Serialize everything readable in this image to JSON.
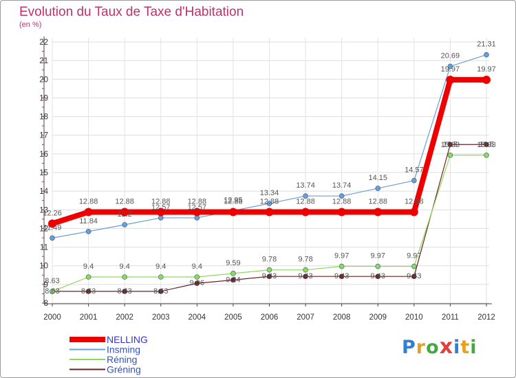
{
  "header": {
    "title": "Evolution du Taux de Taxe d'Habitation",
    "subtitle": "(en %)"
  },
  "logo": {
    "letters": [
      "P",
      "r",
      "o",
      "x",
      "i",
      "t",
      "i"
    ],
    "colors": [
      "#2f7fd4",
      "#e8a020",
      "#45a845",
      "#e04040",
      "#2f7fd4",
      "#e8a020",
      "#45a845"
    ]
  },
  "chart_data": {
    "type": "line",
    "x": [
      "2000",
      "2001",
      "2002",
      "2003",
      "2004",
      "2005",
      "2006",
      "2007",
      "2008",
      "2009",
      "2010",
      "2011",
      "2012"
    ],
    "yticks": [
      "8",
      "9",
      "10",
      "11",
      "12",
      "13",
      "14",
      "15",
      "16",
      "17",
      "18",
      "19",
      "20",
      "21",
      "22"
    ],
    "ylim": [
      8,
      22
    ],
    "grid": true,
    "legend_position": "bottom-left",
    "series": [
      {
        "name": "NELLING",
        "color": "#ee0000",
        "values": [
          12.26,
          12.88,
          12.88,
          12.88,
          12.88,
          12.88,
          12.88,
          12.88,
          12.88,
          12.88,
          12.88,
          19.97,
          19.97
        ],
        "labels": [
          "12.26",
          "12.88",
          "12.88",
          "12.88",
          "12.88",
          "12.88",
          "12.88",
          "12.88",
          "12.88",
          "12.88",
          "12.88",
          "19.97",
          "19.97"
        ]
      },
      {
        "name": "Insming",
        "color": "#6a9ed8",
        "values": [
          11.49,
          11.84,
          12.2,
          12.57,
          12.57,
          12.95,
          13.34,
          13.74,
          13.74,
          14.15,
          14.57,
          20.69,
          21.31
        ],
        "labels": [
          "11.49",
          "11.84",
          "12.2",
          "12.57",
          "12.57",
          "12.95",
          "13.34",
          "13.74",
          "13.74",
          "14.15",
          "14.57",
          "20.69",
          "21.31"
        ]
      },
      {
        "name": "Réning",
        "color": "#8ed85e",
        "values": [
          8.63,
          9.4,
          9.4,
          9.4,
          9.4,
          9.59,
          9.78,
          9.78,
          9.97,
          9.97,
          9.97,
          15.93,
          15.93
        ],
        "labels": [
          "8.63",
          "9.4",
          "9.4",
          "9.4",
          "9.4",
          "9.59",
          "9.78",
          "9.78",
          "9.97",
          "9.97",
          "9.97",
          "15.93",
          "15.93"
        ]
      },
      {
        "name": "Gréning",
        "color": "#6b2222",
        "values": [
          8.63,
          8.63,
          8.63,
          8.63,
          9.06,
          9.24,
          9.43,
          9.43,
          9.43,
          9.43,
          9.43,
          16.5,
          16.5
        ],
        "labels": [
          "8.63",
          "8.63",
          "8.63",
          "8.63",
          "9.06",
          "9.24",
          "9.43",
          "9.43",
          "9.43",
          "9.43",
          "9.43",
          "16.5",
          "16.5"
        ]
      }
    ]
  }
}
